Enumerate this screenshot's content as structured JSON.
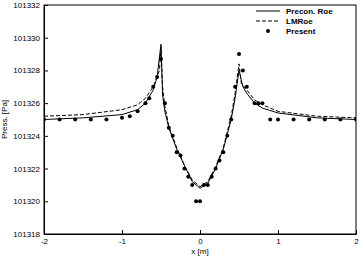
{
  "chart_data": {
    "type": "line",
    "x_label": "x [m]",
    "y_label": "Press. [Pa]",
    "xlim": [
      -2,
      2
    ],
    "xticks": [
      -2,
      -1,
      0,
      1,
      2
    ],
    "ylim": [
      101318,
      101332
    ],
    "yticks": [
      101318,
      101320,
      101322,
      101324,
      101326,
      101328,
      101330,
      101332
    ],
    "legend": "top-right",
    "series": [
      {
        "name": "Precon. Roe",
        "type": "line",
        "color": "#000000",
        "line_style": "solid",
        "x": [
          -2,
          -1.5,
          -1,
          -0.8,
          -0.7,
          -0.6,
          -0.55,
          -0.5,
          -0.48,
          -0.45,
          -0.4,
          -0.3,
          -0.2,
          -0.1,
          0,
          0.1,
          0.2,
          0.3,
          0.4,
          0.45,
          0.5,
          0.55,
          0.6,
          0.7,
          0.8,
          1,
          1.5,
          2
        ],
        "values": [
          101325.0,
          101325.1,
          101325.3,
          101325.6,
          101326.0,
          101326.8,
          101327.6,
          101329.6,
          101326.5,
          101325.5,
          101324.5,
          101323.2,
          101322.2,
          101321.2,
          101320.8,
          101321.1,
          101322.0,
          101323.2,
          101325.0,
          101326.3,
          101328.0,
          101327.0,
          101326.6,
          101326.0,
          101325.7,
          101325.4,
          101325.1,
          101325.0
        ]
      },
      {
        "name": "LMRoe",
        "type": "line",
        "color": "#000000",
        "line_style": "dashed",
        "x": [
          -2,
          -1.5,
          -1,
          -0.8,
          -0.7,
          -0.6,
          -0.52,
          -0.5,
          -0.48,
          -0.45,
          -0.4,
          -0.3,
          -0.2,
          -0.1,
          0,
          0.1,
          0.2,
          0.3,
          0.4,
          0.45,
          0.5,
          0.53,
          0.6,
          0.7,
          0.8,
          1,
          1.5,
          2
        ],
        "values": [
          101325.2,
          101325.3,
          101325.6,
          101325.9,
          101326.3,
          101327.0,
          101328.0,
          101329.4,
          101327.0,
          101325.8,
          101324.6,
          101323.3,
          101322.2,
          101321.3,
          101320.9,
          101321.2,
          101322.1,
          101323.3,
          101325.2,
          101326.6,
          101328.4,
          101327.2,
          101326.8,
          101326.2,
          101325.9,
          101325.5,
          101325.2,
          101325.1
        ]
      },
      {
        "name": "Present",
        "type": "scatter",
        "color": "#000000",
        "marker": "circle",
        "x": [
          -2,
          -1.8,
          -1.6,
          -1.4,
          -1.2,
          -1,
          -0.9,
          -0.8,
          -0.7,
          -0.65,
          -0.6,
          -0.55,
          -0.5,
          -0.45,
          -0.4,
          -0.35,
          -0.3,
          -0.25,
          -0.2,
          -0.15,
          -0.1,
          -0.05,
          0,
          0.05,
          0.1,
          0.15,
          0.2,
          0.25,
          0.3,
          0.35,
          0.4,
          0.45,
          0.5,
          0.55,
          0.6,
          0.7,
          0.75,
          0.8,
          0.9,
          1,
          1.2,
          1.4,
          1.6,
          1.8,
          2
        ],
        "values": [
          101325,
          101325,
          101325,
          101325,
          101325,
          101325.1,
          101325.2,
          101325.5,
          101326,
          101326.3,
          101327,
          101327.6,
          101328.7,
          101326,
          101324.5,
          101324,
          101323,
          101322.8,
          101322,
          101321.5,
          101321,
          101320,
          101320,
          101321,
          101321,
          101321.5,
          101322,
          101322.5,
          101323,
          101324,
          101325,
          101327,
          101329,
          101328,
          101327,
          101326,
          101326,
          101326,
          101325,
          101325,
          101325,
          101325,
          101325,
          101325,
          101325
        ]
      }
    ]
  }
}
